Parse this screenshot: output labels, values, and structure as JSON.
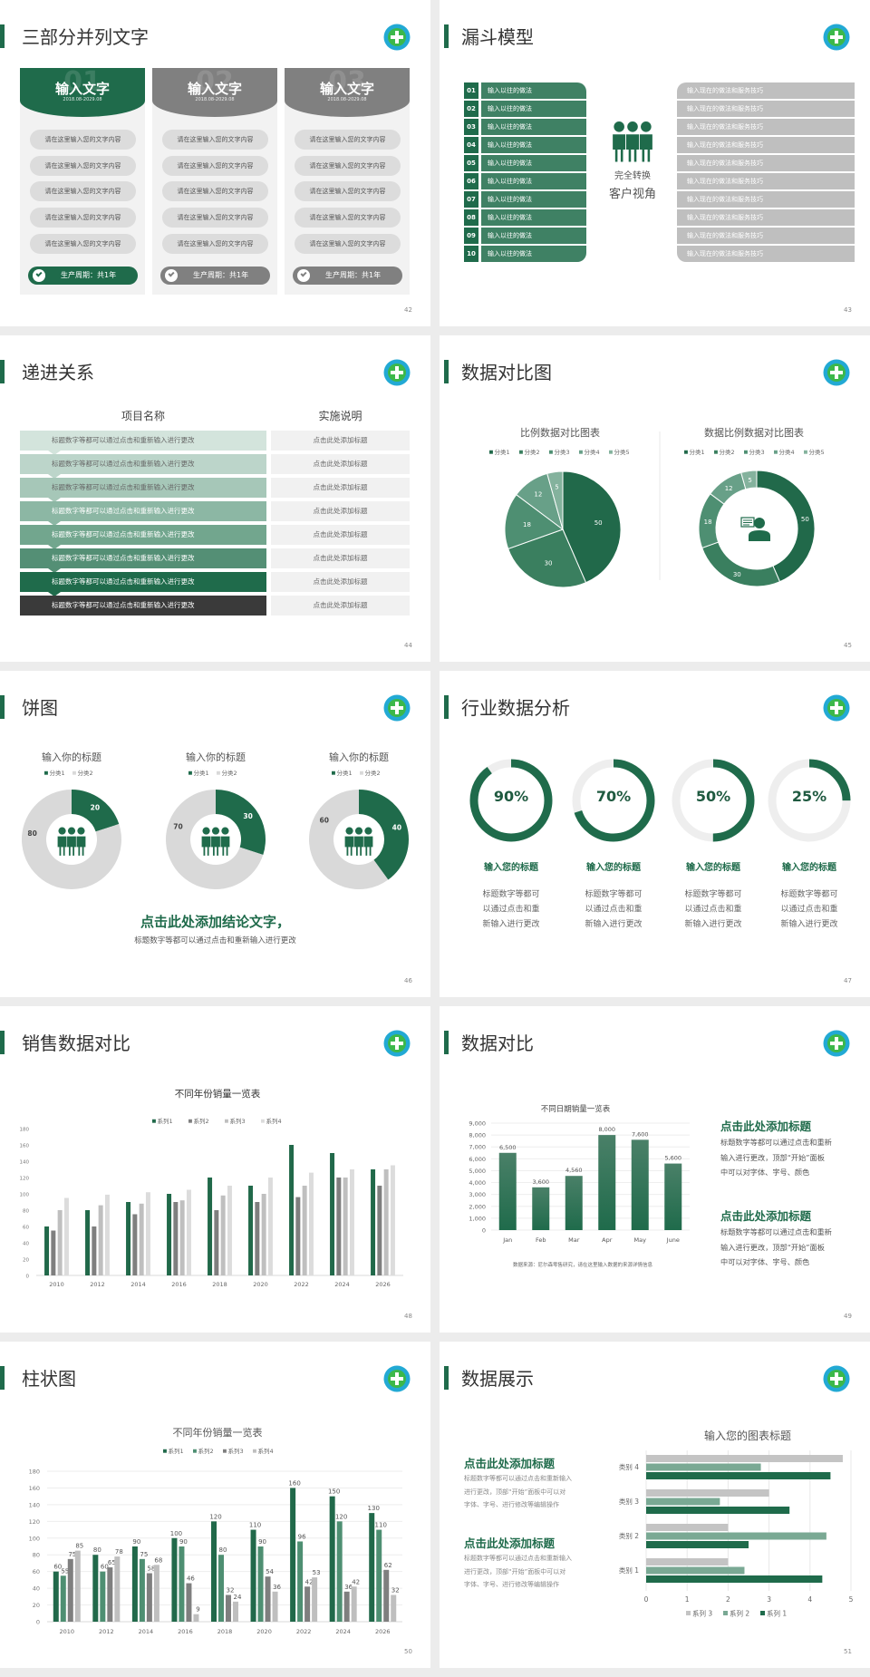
{
  "theme": {
    "accent": "#1f6b4b",
    "gray": "#808080",
    "light_gray": "#d9d9d9",
    "logo_ring": "#22a9d4",
    "logo_fill": "#3cb84a"
  },
  "slides": [
    {
      "title": "三部分并列文字",
      "page": "42",
      "cards": [
        {
          "number": "01",
          "heading": "输入文字",
          "date": "2018.08-2029.08",
          "color": "#1f6b4b",
          "items": [
            "请在这里输入您的文字内容",
            "请在这里输入您的文字内容",
            "请在这里输入您的文字内容",
            "请在这里输入您的文字内容",
            "请在这里输入您的文字内容"
          ],
          "footer": "生产周期：共1年",
          "icon": "check-circle-icon"
        },
        {
          "number": "02",
          "heading": "输入文字",
          "date": "2018.08-2029.08",
          "color": "#808080",
          "items": [
            "请在这里输入您的文字内容",
            "请在这里输入您的文字内容",
            "请在这里输入您的文字内容",
            "请在这里输入您的文字内容",
            "请在这里输入您的文字内容"
          ],
          "footer": "生产周期：共1年",
          "icon": "check-circle-icon"
        },
        {
          "number": "03",
          "heading": "输入文字",
          "date": "2018.08-2029.08",
          "color": "#808080",
          "items": [
            "请在这里输入您的文字内容",
            "请在这里输入您的文字内容",
            "请在这里输入您的文字内容",
            "请在这里输入您的文字内容",
            "请在这里输入您的文字内容"
          ],
          "footer": "生产周期：共1年",
          "icon": "check-circle-icon"
        }
      ]
    },
    {
      "title": "漏斗模型",
      "page": "43",
      "left_items": [
        {
          "num": "01",
          "text": "输入以往的做法"
        },
        {
          "num": "02",
          "text": "输入以往的做法"
        },
        {
          "num": "03",
          "text": "输入以往的做法"
        },
        {
          "num": "04",
          "text": "输入以往的做法"
        },
        {
          "num": "05",
          "text": "输入以往的做法"
        },
        {
          "num": "06",
          "text": "输入以往的做法"
        },
        {
          "num": "07",
          "text": "输入以往的做法"
        },
        {
          "num": "08",
          "text": "输入以往的做法"
        },
        {
          "num": "09",
          "text": "输入以往的做法"
        },
        {
          "num": "10",
          "text": "输入以往的做法"
        }
      ],
      "right_items": [
        "输入现在的做法和服务技巧",
        "输入现在的做法和服务技巧",
        "输入现在的做法和服务技巧",
        "输入现在的做法和服务技巧",
        "输入现在的做法和服务技巧",
        "输入现在的做法和服务技巧",
        "输入现在的做法和服务技巧",
        "输入现在的做法和服务技巧",
        "输入现在的做法和服务技巧",
        "输入现在的做法和服务技巧"
      ],
      "center": {
        "line1": "完全转换",
        "line2": "客户视角",
        "icon": "team-icon"
      }
    },
    {
      "title": "递进关系",
      "page": "44",
      "headers": [
        "项目名称",
        "实施说明"
      ],
      "row_colors": [
        "#d3e4dc",
        "#bcd5ca",
        "#a6c7b8",
        "#8cb7a4",
        "#72a68e",
        "#548f75",
        "#1f6b4b",
        "#3a3a3a"
      ],
      "rows": [
        {
          "left": "标题数字等都可以通过点击和重新输入进行更改",
          "right": "点击此处添加标题"
        },
        {
          "left": "标题数字等都可以通过点击和重新输入进行更改",
          "right": "点击此处添加标题"
        },
        {
          "left": "标题数字等都可以通过点击和重新输入进行更改",
          "right": "点击此处添加标题"
        },
        {
          "left": "标题数字等都可以通过点击和重新输入进行更改",
          "right": "点击此处添加标题"
        },
        {
          "left": "标题数字等都可以通过点击和重新输入进行更改",
          "right": "点击此处添加标题"
        },
        {
          "left": "标题数字等都可以通过点击和重新输入进行更改",
          "right": "点击此处添加标题"
        },
        {
          "left": "标题数字等都可以通过点击和重新输入进行更改",
          "right": "点击此处添加标题"
        },
        {
          "left": "标题数字等都可以通过点击和重新输入进行更改",
          "right": "点击此处添加标题"
        }
      ]
    },
    {
      "title": "数据对比图",
      "page": "45",
      "center_icon": "customer-service-icon"
    },
    {
      "title": "饼图",
      "page": "46",
      "conclusion": "点击此处添加结论文字，",
      "note": "标题数字等都可以通过点击和重新输入进行更改",
      "center_icon": "team-icon"
    },
    {
      "title": "行业数据分析",
      "page": "47",
      "items": [
        {
          "percent": "90%",
          "value": 90,
          "heading": "输入您的标题",
          "desc": [
            "标题数字等都可",
            "以通过点击和重",
            "新输入进行更改"
          ]
        },
        {
          "percent": "70%",
          "value": 70,
          "heading": "输入您的标题",
          "desc": [
            "标题数字等都可",
            "以通过点击和重",
            "新输入进行更改"
          ]
        },
        {
          "percent": "50%",
          "value": 50,
          "heading": "输入您的标题",
          "desc": [
            "标题数字等都可",
            "以通过点击和重",
            "新输入进行更改"
          ]
        },
        {
          "percent": "25%",
          "value": 25,
          "heading": "输入您的标题",
          "desc": [
            "标题数字等都可",
            "以通过点击和重",
            "新输入进行更改"
          ]
        }
      ]
    },
    {
      "title": "销售数据对比",
      "page": "48"
    },
    {
      "title": "数据对比",
      "page": "49",
      "blocks": [
        {
          "heading": "点击此处添加标题",
          "lines": [
            "标题数字等都可以通过点击和重新",
            "输入进行更改，顶部“开始”面板",
            "中可以对字体、字号、颜色"
          ]
        },
        {
          "heading": "点击此处添加标题",
          "lines": [
            "标题数字等都可以通过点击和重新",
            "输入进行更改，顶部“开始”面板",
            "中可以对字体、字号、颜色"
          ]
        }
      ]
    },
    {
      "title": "柱状图",
      "page": "50"
    },
    {
      "title": "数据展示",
      "page": "51",
      "blocks": [
        {
          "heading": "点击此处添加标题",
          "lines": [
            "标题数字等都可以通过点击和重新输入",
            "进行更改，顶部“开始”面板中可以对",
            "字体、字号、进行修改等编辑操作"
          ]
        },
        {
          "heading": "点击此处添加标题",
          "lines": [
            "标题数字等都可以通过点击和重新输入",
            "进行更改，顶部“开始”面板中可以对",
            "字体、字号、进行修改等编辑操作"
          ]
        }
      ]
    }
  ],
  "chart_data": [
    {
      "type": "pie",
      "title": "比例数据对比图表",
      "categories": [
        "分类1",
        "分类2",
        "分类3",
        "分类4",
        "分类5"
      ],
      "values": [
        50,
        30,
        18,
        12,
        5
      ],
      "colors": [
        "#21694a",
        "#3a7f5f",
        "#4e8f72",
        "#68a088",
        "#84b29d"
      ],
      "legend": "top"
    },
    {
      "type": "pie",
      "variant": "donut",
      "title": "数据比例数据对比图表",
      "categories": [
        "分类1",
        "分类2",
        "分类3",
        "分类4",
        "分类5"
      ],
      "values": [
        50,
        30,
        18,
        12,
        5
      ],
      "colors": [
        "#21694a",
        "#3a7f5f",
        "#4e8f72",
        "#68a088",
        "#84b29d"
      ],
      "legend": "top"
    },
    {
      "type": "pie",
      "variant": "donut",
      "title": "输入你的标题",
      "categories": [
        "分类1",
        "分类2"
      ],
      "values": [
        20,
        80
      ],
      "colors": [
        "#1f6b4b",
        "#d9d9d9"
      ],
      "legend": "top"
    },
    {
      "type": "pie",
      "variant": "donut",
      "title": "输入你的标题",
      "categories": [
        "分类1",
        "分类2"
      ],
      "values": [
        30,
        70
      ],
      "colors": [
        "#1f6b4b",
        "#d9d9d9"
      ],
      "legend": "top"
    },
    {
      "type": "pie",
      "variant": "donut",
      "title": "输入你的标题",
      "categories": [
        "分类1",
        "分类2"
      ],
      "values": [
        40,
        60
      ],
      "colors": [
        "#1f6b4b",
        "#d9d9d9"
      ],
      "legend": "top"
    },
    {
      "type": "bar",
      "title": "不同年份销量一览表",
      "categories": [
        "2010",
        "2012",
        "2014",
        "2016",
        "2018",
        "2020",
        "2022",
        "2024",
        "2026"
      ],
      "series": [
        {
          "name": "系列1",
          "values": [
            60,
            80,
            90,
            100,
            120,
            110,
            160,
            150,
            130
          ],
          "color": "#21694a"
        },
        {
          "name": "系列2",
          "values": [
            55,
            60,
            75,
            90,
            80,
            90,
            96,
            120,
            110
          ],
          "color": "#7f7f7f"
        },
        {
          "name": "系列3",
          "values": [
            80,
            86,
            88,
            92,
            98,
            100,
            110,
            120,
            130
          ],
          "color": "#bfbfbf"
        },
        {
          "name": "系列4",
          "values": [
            95,
            99,
            102,
            105,
            110,
            120,
            126,
            130,
            135
          ],
          "color": "#dcdcdc"
        }
      ],
      "ylim": [
        0,
        180
      ],
      "yticks": [
        "0",
        "20",
        "40",
        "60",
        "80",
        "100",
        "120",
        "140",
        "160",
        "180"
      ],
      "legend": "top",
      "grid": false
    },
    {
      "type": "bar",
      "title": "不同日期销量一览表",
      "categories": [
        "Jan",
        "Feb",
        "Mar",
        "Apr",
        "May",
        "June"
      ],
      "values": [
        6500,
        3600,
        4560,
        8000,
        7600,
        5600
      ],
      "data_labels": [
        "6,500",
        "3,600",
        "4,560",
        "8,000",
        "7,600",
        "5,600"
      ],
      "color": "#1f6b4b",
      "ylim": [
        0,
        9000
      ],
      "yticks": [
        "0",
        "1,000",
        "2,000",
        "3,000",
        "4,000",
        "5,000",
        "6,000",
        "7,000",
        "8,000",
        "9,000"
      ],
      "grid": true,
      "source": "数据来源：尼尔森零售研究，请在这里输入数据的来源详情信息"
    },
    {
      "type": "bar",
      "title": "不同年份销量一览表",
      "categories": [
        "2010",
        "2012",
        "2014",
        "2016",
        "2018",
        "2020",
        "2022",
        "2024",
        "2026"
      ],
      "series": [
        {
          "name": "系列1",
          "values": [
            60,
            80,
            90,
            100,
            120,
            110,
            160,
            150,
            130
          ],
          "color": "#21694a"
        },
        {
          "name": "系列2",
          "values": [
            55,
            60,
            75,
            90,
            80,
            90,
            96,
            120,
            110
          ],
          "color": "#4e8f72"
        },
        {
          "name": "系列3",
          "values": [
            75,
            65,
            58,
            46,
            32,
            54,
            42,
            36,
            62
          ],
          "color": "#7f7f7f"
        },
        {
          "name": "系列4",
          "values": [
            85,
            78,
            68,
            9,
            24,
            36,
            53,
            42,
            32
          ],
          "color": "#bfbfbf"
        }
      ],
      "ylim": [
        0,
        180
      ],
      "yticks": [
        "0",
        "20",
        "40",
        "60",
        "80",
        "100",
        "120",
        "140",
        "160",
        "180"
      ],
      "legend": "top",
      "grid": true,
      "data_labels": true
    },
    {
      "type": "bar",
      "orientation": "horizontal",
      "title": "输入您的图表标题",
      "categories": [
        "类别 1",
        "类别 2",
        "类别 3",
        "类别 4"
      ],
      "series": [
        {
          "name": "系列 1",
          "values": [
            4.3,
            2.5,
            3.5,
            4.5
          ],
          "color": "#1f6b4b"
        },
        {
          "name": "系列 2",
          "values": [
            2.4,
            4.4,
            1.8,
            2.8
          ],
          "color": "#7aa994"
        },
        {
          "name": "系列 3",
          "values": [
            2,
            2,
            3,
            4.8
          ],
          "color": "#c4c4c4"
        }
      ],
      "legend_order": [
        2,
        1,
        0
      ],
      "xlim": [
        0,
        5
      ],
      "xticks": [
        "0",
        "1",
        "2",
        "3",
        "4",
        "5"
      ],
      "legend": "bottom",
      "grid": true
    }
  ]
}
